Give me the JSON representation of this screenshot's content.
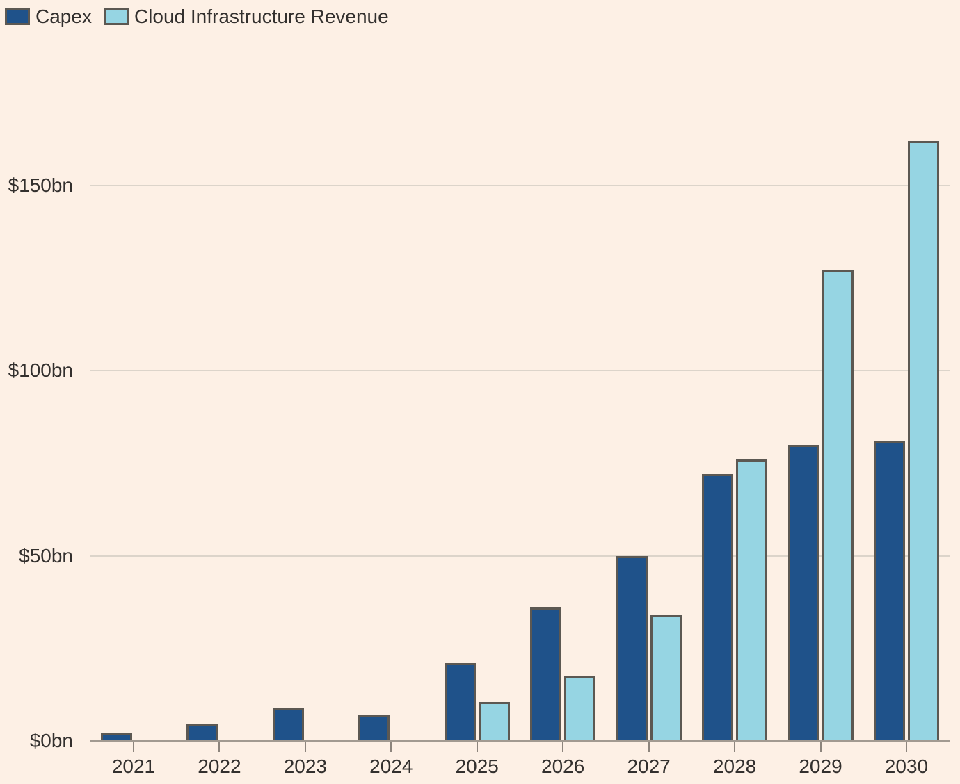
{
  "legend": {
    "items": [
      {
        "label": "Capex"
      },
      {
        "label": "Cloud Infrastructure Revenue"
      }
    ]
  },
  "chart_data": {
    "type": "bar",
    "title": "",
    "unit": "$bn",
    "categories": [
      "2021",
      "2022",
      "2023",
      "2024",
      "2025",
      "2026",
      "2027",
      "2028",
      "2029",
      "2030"
    ],
    "series": [
      {
        "name": "Capex",
        "color": "#1F528A",
        "values": [
          2.1,
          4.5,
          8.8,
          7,
          21,
          36,
          50,
          72,
          80,
          81
        ]
      },
      {
        "name": "Cloud Infrastructure Revenue",
        "color": "#96D5E3",
        "values": [
          0,
          0,
          0,
          0,
          10.5,
          17.5,
          34,
          76,
          127,
          162
        ]
      }
    ],
    "ytick_labels": [
      "$0bn",
      "$50bn",
      "$100bn",
      "$150bn"
    ],
    "ytick_values": [
      0,
      50,
      100,
      150
    ],
    "ylim": [
      0,
      170
    ],
    "grid": true,
    "legend_position": "top-left"
  },
  "colors": {
    "background": "#FDF0E5",
    "text": "#33302E",
    "grid": "#DCD4CA",
    "axis": "#A29A91",
    "tick": "#8D857D",
    "bar_border": "#5C5852",
    "capex": "#1F528A",
    "cloud_revenue": "#96D5E3"
  }
}
